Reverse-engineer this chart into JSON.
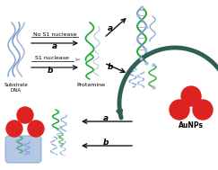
{
  "bg_color": "#ffffff",
  "dna_blue": "#7799cc",
  "dna_blue2": "#aabbdd",
  "dna_green": "#22aa33",
  "aunp_red": "#dd2222",
  "arrow_color": "#111111",
  "curved_arrow_color": "#2d5f55",
  "no_s1_text": "No S1 nuclease",
  "s1_text": "S1 nuclease",
  "substrate_dna_text": "Substrate\nDNA",
  "protamine_text": "Protamine",
  "aunps_text": "AuNPs",
  "label_a": "a",
  "label_b": "b",
  "figsize": [
    2.43,
    1.89
  ],
  "dpi": 100
}
